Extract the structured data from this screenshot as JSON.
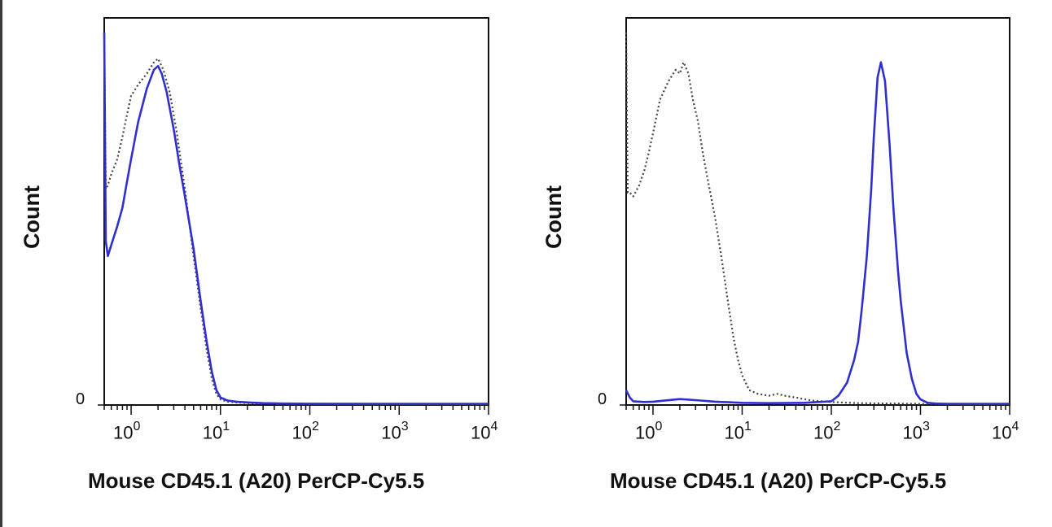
{
  "chart_data": [
    {
      "type": "line",
      "xscale": "log",
      "xlim": [
        0.5,
        10000
      ],
      "ylim": [
        0,
        100
      ],
      "xlabel": "Mouse CD45.1 (A20) PerCP-Cy5.5",
      "ylabel": "Count",
      "y_zero_label": "0",
      "xticks": [
        {
          "base": "10",
          "exp": "0",
          "value": 1
        },
        {
          "base": "10",
          "exp": "1",
          "value": 10
        },
        {
          "base": "10",
          "exp": "2",
          "value": 100
        },
        {
          "base": "10",
          "exp": "3",
          "value": 1000
        },
        {
          "base": "10",
          "exp": "4",
          "value": 10000
        }
      ],
      "series": [
        {
          "style": "dotted",
          "color": "#444444",
          "x": [
            0.5,
            0.52,
            0.55,
            0.6,
            0.7,
            0.8,
            0.9,
            1.0,
            1.2,
            1.5,
            1.8,
            2.0,
            2.3,
            2.7,
            3.2,
            4.0,
            5.0,
            6.0,
            7.0,
            8.0,
            9.0,
            10,
            12,
            15,
            20,
            30,
            50,
            100,
            1000,
            10000
          ],
          "y": [
            100,
            58,
            59,
            62,
            66,
            72,
            78,
            83,
            86,
            89,
            92,
            93,
            90,
            84,
            74,
            58,
            40,
            26,
            15,
            7,
            3,
            1.5,
            0.9,
            0.7,
            0.5,
            0.4,
            0.35,
            0.3,
            0.25,
            0.25
          ]
        },
        {
          "style": "solid",
          "color": "#2f2fd0",
          "x": [
            0.5,
            0.52,
            0.55,
            0.6,
            0.7,
            0.8,
            0.9,
            1.0,
            1.2,
            1.5,
            1.8,
            2.0,
            2.2,
            2.5,
            3.0,
            3.5,
            4.0,
            5.0,
            6.0,
            7.0,
            8.0,
            9.0,
            10,
            12,
            15,
            20,
            30,
            50,
            100,
            1000,
            10000
          ],
          "y": [
            100,
            44,
            40,
            43,
            48,
            53,
            60,
            66,
            76,
            85,
            90,
            91,
            89,
            84,
            74,
            64,
            56,
            42,
            28,
            17,
            9,
            4,
            2,
            1.2,
            0.9,
            0.7,
            0.5,
            0.4,
            0.35,
            0.3,
            0.3
          ]
        }
      ]
    },
    {
      "type": "line",
      "xscale": "log",
      "xlim": [
        0.5,
        10000
      ],
      "ylim": [
        0,
        100
      ],
      "xlabel": "Mouse CD45.1 (A20) PerCP-Cy5.5",
      "ylabel": "Count",
      "y_zero_label": "0",
      "xticks": [
        {
          "base": "10",
          "exp": "0",
          "value": 1
        },
        {
          "base": "10",
          "exp": "1",
          "value": 10
        },
        {
          "base": "10",
          "exp": "2",
          "value": 100
        },
        {
          "base": "10",
          "exp": "3",
          "value": 1000
        },
        {
          "base": "10",
          "exp": "4",
          "value": 10000
        }
      ],
      "series": [
        {
          "style": "dotted",
          "color": "#444444",
          "x": [
            0.5,
            0.52,
            0.55,
            0.6,
            0.7,
            0.8,
            0.9,
            1.0,
            1.2,
            1.5,
            1.8,
            2.0,
            2.2,
            2.5,
            2.8,
            3.2,
            3.6,
            4.0,
            5.0,
            6.0,
            7.0,
            8.0,
            9.0,
            10,
            12,
            15,
            20,
            25,
            30,
            40,
            60,
            100,
            200,
            1000,
            10000
          ],
          "y": [
            100,
            57,
            57,
            56,
            59,
            63,
            68,
            73,
            82,
            87,
            90,
            89,
            92,
            89,
            82,
            76,
            68,
            62,
            50,
            38,
            27,
            18,
            12,
            8,
            4,
            3,
            2.5,
            3,
            2.5,
            2,
            1.2,
            0.8,
            0.5,
            0.3,
            0.3
          ]
        },
        {
          "style": "solid",
          "color": "#2f2fd0",
          "x": [
            0.5,
            0.55,
            0.6,
            0.8,
            1.0,
            2.0,
            3.0,
            5.0,
            10,
            20,
            50,
            100,
            120,
            150,
            180,
            200,
            220,
            250,
            280,
            300,
            330,
            360,
            400,
            450,
            500,
            560,
            600,
            700,
            800,
            900,
            1000,
            1200,
            1500,
            2000,
            10000
          ],
          "y": [
            4,
            2,
            1,
            0.8,
            0.9,
            1.6,
            1.3,
            0.9,
            0.6,
            0.5,
            0.6,
            1,
            2.5,
            6,
            12,
            17,
            26,
            40,
            58,
            72,
            88,
            92,
            87,
            70,
            52,
            36,
            28,
            14,
            7,
            3,
            1.5,
            0.6,
            0.4,
            0.3,
            0.3
          ]
        }
      ]
    }
  ]
}
